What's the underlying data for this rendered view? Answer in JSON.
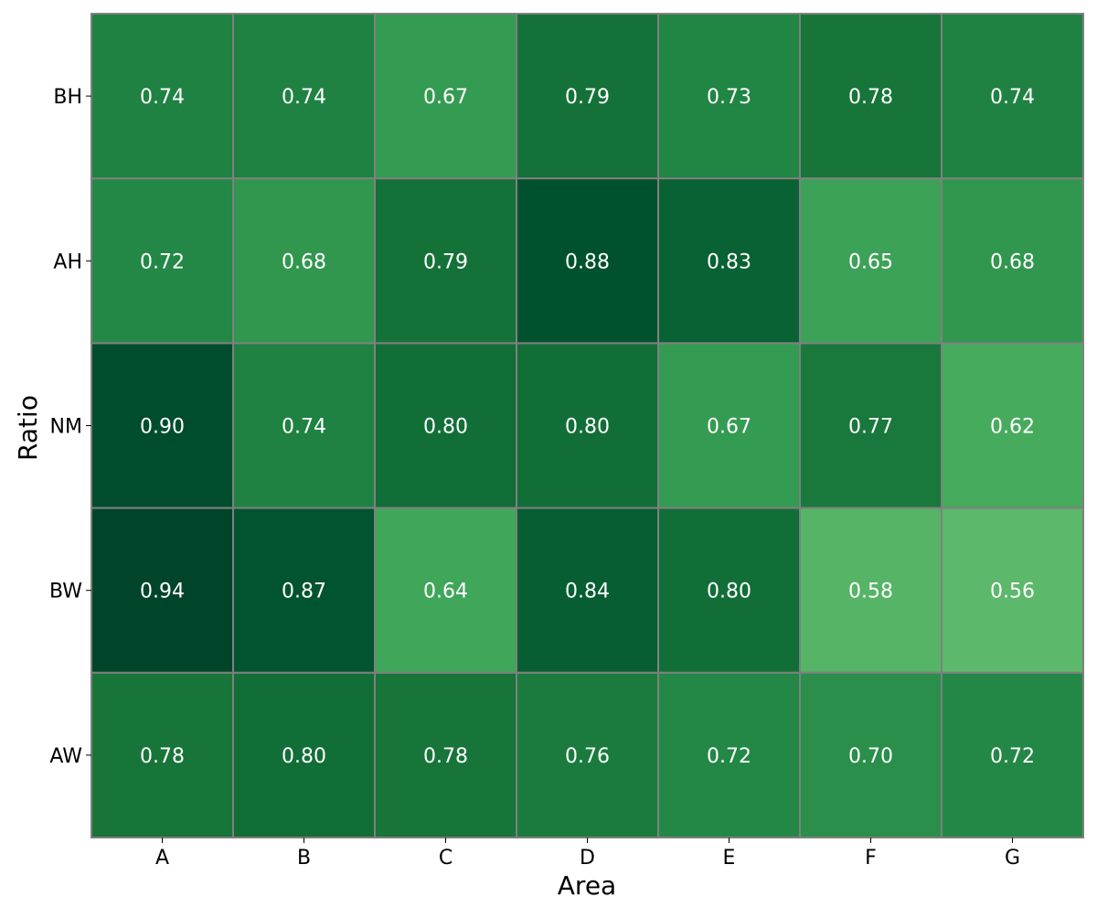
{
  "chart_data": {
    "type": "heatmap",
    "title": "",
    "xlabel": "Area",
    "ylabel": "Ratio",
    "x_categories": [
      "A",
      "B",
      "C",
      "D",
      "E",
      "F",
      "G"
    ],
    "y_categories": [
      "BH",
      "AH",
      "NM",
      "BW",
      "AW"
    ],
    "values": [
      [
        0.74,
        0.74,
        0.67,
        0.79,
        0.73,
        0.78,
        0.74
      ],
      [
        0.72,
        0.68,
        0.79,
        0.88,
        0.83,
        0.65,
        0.68
      ],
      [
        0.9,
        0.74,
        0.8,
        0.8,
        0.67,
        0.77,
        0.62
      ],
      [
        0.94,
        0.87,
        0.64,
        0.84,
        0.8,
        0.58,
        0.56
      ],
      [
        0.78,
        0.8,
        0.78,
        0.76,
        0.72,
        0.7,
        0.72
      ]
    ],
    "value_format": "0.00",
    "colormap": "Greens",
    "color_stops": [
      "#5cb86a",
      "#41a85b",
      "#258a47",
      "#157339",
      "#00552f",
      "#00452a"
    ],
    "cell_border_color": "#808080",
    "annotation_color": "#ffffff",
    "colorbar": false
  }
}
